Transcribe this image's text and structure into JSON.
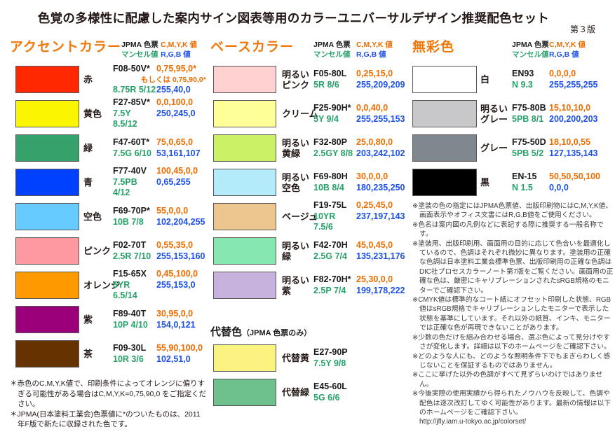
{
  "title": "色覚の多様性に配慮した案内サイン図表等用のカラーユニバーサルデザイン推奨配色セット",
  "edition": "第３版",
  "col_headers": {
    "jpma": "JPMA 色票",
    "munsell": "マンセル値",
    "cmyk": "C,M,Y,K 値",
    "rgb": "R,G,B 値"
  },
  "accent": {
    "heading": "アクセントカラー",
    "rows": [
      {
        "name": "赤",
        "jpma": "F08-50V*",
        "munsell": "8.75R 5/12",
        "cmyk": "0,75,95,0*",
        "cmyk_alt": "もしくは 0,75,90,0*",
        "rgb": "255,40,0",
        "hex": "#FF2800"
      },
      {
        "name": "黄色",
        "jpma": "F27-85V*",
        "munsell": "7.5Y 8.5/12",
        "cmyk": "0,0,100,0",
        "rgb": "250,245,0",
        "hex": "#FAF500"
      },
      {
        "name": "緑",
        "jpma": "F47-60T*",
        "munsell": "7.5G 6/10",
        "cmyk": "75,0,65,0",
        "rgb": "53,161,107",
        "hex": "#35A16B"
      },
      {
        "name": "青",
        "jpma": "F77-40V",
        "munsell": "7.5PB 4/12",
        "cmyk": "100,45,0,0",
        "rgb": "0,65,255",
        "hex": "#0041FF"
      },
      {
        "name": "空色",
        "jpma": "F69-70P*",
        "munsell": "10B 7/8",
        "cmyk": "55,0,0,0",
        "rgb": "102,204,255",
        "hex": "#66CCFF"
      },
      {
        "name": "ピンク",
        "jpma": "F02-70T",
        "munsell": "2.5R 7/10",
        "cmyk": "0,55,35,0",
        "rgb": "255,153,160",
        "hex": "#FF99A0"
      },
      {
        "name": "オレンジ",
        "jpma": "F15-65X",
        "munsell": "5YR 6.5/14",
        "cmyk": "0,45,100,0",
        "rgb": "255,153,0",
        "hex": "#FF9900"
      },
      {
        "name": "紫",
        "jpma": "F89-40T",
        "munsell": "10P 4/10",
        "cmyk": "30,95,0,0",
        "rgb": "154,0,121",
        "hex": "#9A0079"
      },
      {
        "name": "茶",
        "jpma": "F09-30L",
        "munsell": "10R 3/6",
        "cmyk": "55,90,100,0",
        "rgb": "102,51,0",
        "hex": "#663300"
      }
    ],
    "footnotes": [
      "＊赤色のC,M,Y,K値で、印刷条件によってオレンジに偏りすぎる可能性がある場合はC,M,Y,K=0,75,90,0 をご指定ください。",
      "＊JPMA(日本塗料工業会)色票値に*のついたものは、2011年F版で新たに収録された色です。"
    ]
  },
  "base": {
    "heading": "ベースカラー",
    "rows": [
      {
        "name": "明るい\nピンク",
        "jpma": "F05-80L",
        "munsell": "5R 8/6",
        "cmyk": "0,25,15,0",
        "rgb": "255,209,209",
        "hex": "#FFD1D1"
      },
      {
        "name": "クリーム",
        "jpma": "F25-90H*",
        "munsell": "5Y 9/4",
        "cmyk": "0,0,40,0",
        "rgb": "255,255,153",
        "hex": "#FFFF99"
      },
      {
        "name": "明るい\n黄緑",
        "jpma": "F32-80P",
        "munsell": "2.5GY 8/8",
        "cmyk": "25,0,80,0",
        "rgb": "203,242,102",
        "hex": "#CBF266"
      },
      {
        "name": "明るい\n空色",
        "jpma": "F69-80H",
        "munsell": "10B 8/4",
        "cmyk": "30,0,0,0",
        "rgb": "180,235,250",
        "hex": "#B4EBFA"
      },
      {
        "name": "ベージュ",
        "jpma": "F19-75L",
        "munsell": "10YR 7.5/6",
        "cmyk": "0,25,45,0",
        "rgb": "237,197,143",
        "hex": "#EDC58F"
      },
      {
        "name": "明るい\n緑",
        "jpma": "F42-70H",
        "munsell": "2.5G 7/4",
        "cmyk": "45,0,45,0",
        "rgb": "135,231,176",
        "hex": "#87E7B0"
      },
      {
        "name": "明るい\n紫",
        "jpma": "F82-70H*",
        "munsell": "2.5P 7/4",
        "cmyk": "25,30,0,0",
        "rgb": "199,178,222",
        "hex": "#C7B2DE"
      }
    ]
  },
  "alt": {
    "heading": "代替色",
    "heading_note": "（JPMA 色票のみ）",
    "rows": [
      {
        "name": "代替黄",
        "jpma": "E27-90P",
        "munsell": "7.5Y 9/8",
        "hex": "#FBF37F"
      },
      {
        "name": "代替緑",
        "jpma": "E45-60L",
        "munsell": "5G 6/6",
        "hex": "#6EC08C"
      }
    ]
  },
  "achromatic": {
    "heading": "無彩色",
    "rows": [
      {
        "name": "白",
        "jpma": "EN93",
        "munsell": "N 9.3",
        "cmyk": "0,0,0,0",
        "rgb": "255,255,255",
        "hex": "#FFFFFF"
      },
      {
        "name": "明るい\nグレー",
        "jpma": "F75-80B",
        "munsell": "5PB 8/1",
        "cmyk": "15,10,10,0",
        "rgb": "200,200,203",
        "hex": "#C8C8CB"
      },
      {
        "name": "グレー",
        "jpma": "F75-50D",
        "munsell": "5PB 5/2",
        "cmyk": "18,10,0,55",
        "rgb": "127,135,143",
        "hex": "#7F878F"
      },
      {
        "name": "黒",
        "jpma": "EN-15",
        "munsell": "N 1.5",
        "cmyk": "50,50,50,100",
        "rgb": "0,0,0",
        "hex": "#000000"
      }
    ]
  },
  "notes": {
    "items": [
      "※塗装の色の指定にはJPMA色票値、出版印刷物にはC,M,Y,K値、画面表示やオフィス文書にはR,G,B値をご使用ください。",
      "※色名は案内図の凡例などに表記する際に推奨する一般名称です。",
      "※塗装用、出版印刷用、画面用の目的に応じて色合いを最適化しているので、色調はそれぞれ微妙に異なります。塗装用の正確な色調は日本塗料工業会標準色票、出版印刷用の正確な色調はDIC社プロセスカラーノート第7版をご覧ください。画面用の正確な色は、厳密にキャリブレーションされたsRGB規格のモニターでご確認下さい。",
      "※CMYK値は標準的なコート紙にオフセット印刷した状態、RGB値はsRGB規格でキャリブレーションしたモニターで表示した状態を基準にしています。それ以外の紙質、インキ、モニターでは正確な色が再現できないことがあります。",
      "※少数の色だけを組み合わせる場合、選ぶ色によって見分けやすさが変化します。詳細は以下のホームページをご確認下さい。",
      "※どのような人にも、どのような照明条件下でもまぎらわしく感じないことを保証するものではありません。",
      "※ここに挙げた以外の色調がすべて見ずらいわけではありません。",
      "※今後実際の使用実績から得られたノウハウを反映して、色調や配色は逐次改訂してゆく可能性があります。最新の情報は以下のホームページをご確認下さい。"
    ],
    "url": "http://jfly.iam.u-tokyo.ac.jp/colorset/"
  }
}
